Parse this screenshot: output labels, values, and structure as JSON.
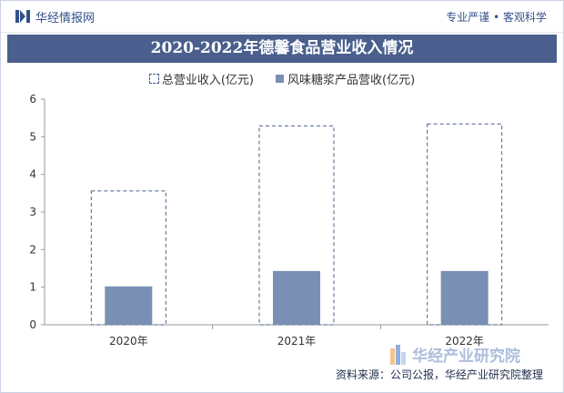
{
  "header": {
    "brand": "华经情报网",
    "slogan": "专业严谨 • 客观科学"
  },
  "chart_data": {
    "type": "bar",
    "title": "2020-2022年德馨食品营业收入情况",
    "categories": [
      "2020年",
      "2021年",
      "2022年"
    ],
    "series": [
      {
        "name": "总营业收入(亿元)",
        "values": [
          3.56,
          5.29,
          5.34
        ],
        "style": "dashed-outline",
        "color": "#4a5f8d"
      },
      {
        "name": "风味糖浆产品营收(亿元)",
        "values": [
          1.02,
          1.43,
          1.43
        ],
        "style": "filled",
        "color": "#7a8fb4"
      }
    ],
    "ylim": [
      0,
      6
    ],
    "yticks": [
      0,
      1,
      2,
      3,
      4,
      5,
      6
    ],
    "xlabel": "",
    "ylabel": "",
    "legend_position": "top-center",
    "grid": false
  },
  "footer": {
    "source": "资料来源：公司公报，华经产业研究院整理",
    "watermark": "华经产业研究院"
  }
}
